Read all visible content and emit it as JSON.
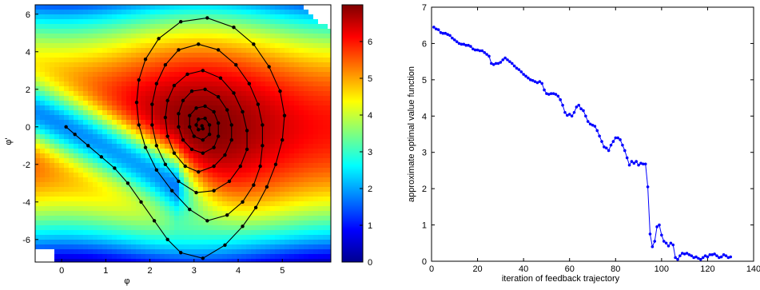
{
  "chart_data": [
    {
      "type": "heatmap",
      "title": "",
      "xlabel": "φ",
      "ylabel": "φ'",
      "xlim": [
        -0.6,
        6.1
      ],
      "ylim": [
        -7.2,
        6.5
      ],
      "x_ticks": [
        0,
        1,
        2,
        3,
        4,
        5
      ],
      "y_ticks": [
        -6,
        -4,
        -2,
        0,
        2,
        4,
        6
      ],
      "colorbar": {
        "range": [
          0,
          7
        ],
        "ticks": [
          0,
          1,
          2,
          3,
          4,
          5,
          6
        ],
        "colormap": "jet",
        "colors": [
          "#00008f",
          "#0000ff",
          "#007fff",
          "#00ffff",
          "#7fff7f",
          "#ffff00",
          "#ff7f00",
          "#ff0000",
          "#7f0000"
        ]
      },
      "trajectory": {
        "color": "#000000",
        "description_points": [
          [
            0.1,
            0.0
          ],
          [
            0.3,
            -0.4
          ],
          [
            0.6,
            -1.0
          ],
          [
            0.9,
            -1.6
          ],
          [
            1.2,
            -2.2
          ],
          [
            1.5,
            -3.0
          ],
          [
            1.8,
            -4.0
          ],
          [
            2.1,
            -5.0
          ],
          [
            2.4,
            -6.0
          ],
          [
            2.7,
            -6.7
          ],
          [
            3.2,
            -7.0
          ],
          [
            3.7,
            -6.3
          ],
          [
            4.1,
            -5.3
          ],
          [
            4.4,
            -4.3
          ],
          [
            4.65,
            -3.2
          ],
          [
            4.85,
            -2.0
          ],
          [
            5.0,
            -0.7
          ],
          [
            5.05,
            0.6
          ],
          [
            4.95,
            1.9
          ],
          [
            4.7,
            3.2
          ],
          [
            4.35,
            4.4
          ],
          [
            3.9,
            5.3
          ],
          [
            3.3,
            5.8
          ],
          [
            2.7,
            5.6
          ],
          [
            2.2,
            4.7
          ],
          [
            1.9,
            3.6
          ],
          [
            1.75,
            2.5
          ],
          [
            1.7,
            1.3
          ],
          [
            1.75,
            0.1
          ],
          [
            1.9,
            -1.1
          ],
          [
            2.15,
            -2.3
          ],
          [
            2.5,
            -3.4
          ],
          [
            2.9,
            -4.4
          ],
          [
            3.3,
            -5.0
          ],
          [
            3.75,
            -4.7
          ],
          [
            4.1,
            -4.0
          ],
          [
            4.35,
            -3.1
          ],
          [
            4.5,
            -2.1
          ],
          [
            4.55,
            -1.0
          ],
          [
            4.55,
            0.1
          ],
          [
            4.45,
            1.2
          ],
          [
            4.25,
            2.3
          ],
          [
            3.95,
            3.3
          ],
          [
            3.55,
            4.1
          ],
          [
            3.1,
            4.4
          ],
          [
            2.65,
            4.1
          ],
          [
            2.35,
            3.3
          ],
          [
            2.15,
            2.3
          ],
          [
            2.05,
            1.2
          ],
          [
            2.05,
            0.1
          ],
          [
            2.15,
            -1.0
          ],
          [
            2.35,
            -2.0
          ],
          [
            2.65,
            -2.9
          ],
          [
            3.05,
            -3.5
          ],
          [
            3.45,
            -3.4
          ],
          [
            3.8,
            -2.9
          ],
          [
            4.05,
            -2.1
          ],
          [
            4.2,
            -1.2
          ],
          [
            4.2,
            -0.2
          ],
          [
            4.1,
            0.8
          ],
          [
            3.9,
            1.8
          ],
          [
            3.6,
            2.6
          ],
          [
            3.2,
            3.0
          ],
          [
            2.85,
            2.8
          ],
          [
            2.55,
            2.2
          ],
          [
            2.4,
            1.4
          ],
          [
            2.35,
            0.5
          ],
          [
            2.4,
            -0.5
          ],
          [
            2.55,
            -1.4
          ],
          [
            2.8,
            -2.1
          ],
          [
            3.1,
            -2.4
          ],
          [
            3.45,
            -2.1
          ],
          [
            3.7,
            -1.5
          ],
          [
            3.85,
            -0.7
          ],
          [
            3.85,
            0.1
          ],
          [
            3.75,
            0.9
          ],
          [
            3.55,
            1.6
          ],
          [
            3.25,
            2.0
          ],
          [
            2.95,
            1.9
          ],
          [
            2.75,
            1.4
          ],
          [
            2.65,
            0.7
          ],
          [
            2.65,
            0.0
          ],
          [
            2.75,
            -0.7
          ],
          [
            2.95,
            -1.2
          ],
          [
            3.2,
            -1.4
          ],
          [
            3.45,
            -1.1
          ],
          [
            3.55,
            -0.5
          ],
          [
            3.55,
            0.2
          ],
          [
            3.45,
            0.8
          ],
          [
            3.25,
            1.1
          ],
          [
            3.05,
            1.0
          ],
          [
            2.9,
            0.6
          ],
          [
            2.9,
            0.0
          ],
          [
            3.0,
            -0.5
          ],
          [
            3.2,
            -0.7
          ],
          [
            3.35,
            -0.4
          ],
          [
            3.35,
            0.1
          ],
          [
            3.25,
            0.45
          ],
          [
            3.1,
            0.4
          ],
          [
            3.05,
            0.1
          ],
          [
            3.1,
            -0.15
          ],
          [
            3.2,
            -0.1
          ],
          [
            3.18,
            0.05
          ]
        ]
      }
    },
    {
      "type": "line",
      "title": "",
      "xlabel": "iteration of feedback trajectory",
      "ylabel": "approximate optimal value function",
      "xlim": [
        0,
        140
      ],
      "ylim": [
        0,
        7
      ],
      "x_ticks": [
        0,
        20,
        40,
        60,
        80,
        100,
        120,
        140
      ],
      "y_ticks": [
        0,
        1,
        2,
        3,
        4,
        5,
        6,
        7
      ],
      "series": [
        {
          "color": "#0000ff",
          "x": [
            1,
            2,
            3,
            4,
            5,
            6,
            7,
            8,
            9,
            10,
            11,
            12,
            13,
            14,
            15,
            16,
            17,
            18,
            19,
            20,
            21,
            22,
            23,
            24,
            25,
            26,
            27,
            28,
            29,
            30,
            31,
            32,
            33,
            34,
            35,
            36,
            37,
            38,
            39,
            40,
            41,
            42,
            43,
            44,
            45,
            46,
            47,
            48,
            49,
            50,
            51,
            52,
            53,
            54,
            55,
            56,
            57,
            58,
            59,
            60,
            61,
            62,
            63,
            64,
            65,
            66,
            67,
            68,
            69,
            70,
            71,
            72,
            73,
            74,
            75,
            76,
            77,
            78,
            79,
            80,
            81,
            82,
            83,
            84,
            85,
            86,
            87,
            88,
            89,
            90,
            91,
            92,
            93,
            94,
            95,
            96,
            97,
            98,
            99,
            100,
            101,
            102,
            103,
            104,
            105,
            106,
            107,
            108,
            109,
            110,
            111,
            112,
            113,
            114,
            115,
            116,
            117,
            118,
            119,
            120,
            121,
            122,
            123,
            124,
            125,
            126,
            127,
            128,
            129,
            130
          ],
          "values": [
            6.45,
            6.4,
            6.38,
            6.3,
            6.28,
            6.28,
            6.25,
            6.22,
            6.15,
            6.1,
            6.05,
            6.0,
            5.98,
            5.98,
            5.95,
            5.95,
            5.92,
            5.85,
            5.82,
            5.82,
            5.8,
            5.8,
            5.75,
            5.7,
            5.65,
            5.45,
            5.42,
            5.45,
            5.45,
            5.48,
            5.55,
            5.6,
            5.55,
            5.5,
            5.45,
            5.38,
            5.32,
            5.28,
            5.22,
            5.15,
            5.1,
            5.05,
            5.0,
            4.98,
            4.95,
            4.92,
            4.95,
            4.9,
            4.72,
            4.62,
            4.6,
            4.62,
            4.62,
            4.6,
            4.55,
            4.45,
            4.3,
            4.1,
            4.02,
            4.05,
            4.0,
            4.1,
            4.25,
            4.3,
            4.2,
            4.15,
            4.0,
            3.85,
            3.78,
            3.75,
            3.72,
            3.6,
            3.45,
            3.3,
            3.15,
            3.12,
            3.05,
            3.2,
            3.3,
            3.4,
            3.4,
            3.35,
            3.2,
            3.05,
            2.85,
            2.65,
            2.75,
            2.7,
            2.75,
            2.65,
            2.7,
            2.68,
            2.68,
            2.05,
            0.75,
            0.4,
            0.55,
            0.95,
            1.0,
            0.72,
            0.55,
            0.5,
            0.42,
            0.5,
            0.45,
            0.1,
            0.05,
            0.15,
            0.22,
            0.2,
            0.22,
            0.18,
            0.15,
            0.1,
            0.12,
            0.08,
            0.05,
            0.1,
            0.15,
            0.12,
            0.18,
            0.18,
            0.2,
            0.15,
            0.1,
            0.12,
            0.18,
            0.15,
            0.1,
            0.12
          ]
        }
      ]
    }
  ]
}
